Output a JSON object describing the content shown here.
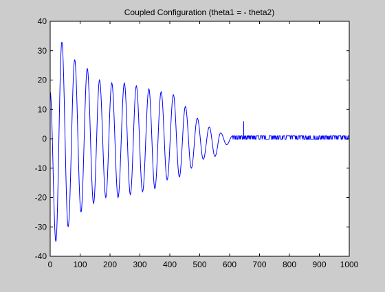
{
  "chart_data": {
    "type": "line",
    "title": "Coupled Configuration (theta1 = - theta2)",
    "xlabel": "",
    "ylabel": "",
    "xlim": [
      0,
      1000
    ],
    "ylim": [
      -40,
      40
    ],
    "x_ticks": [
      0,
      100,
      200,
      300,
      400,
      500,
      600,
      700,
      800,
      900,
      1000
    ],
    "y_ticks": [
      -40,
      -30,
      -20,
      -10,
      0,
      10,
      20,
      30,
      40
    ],
    "grid": false,
    "legend": "none",
    "colors": {
      "figure_bg": "#cccccc",
      "axes_bg": "#ffffff",
      "line": "#0000ff",
      "axis": "#000000"
    },
    "oscillation_extrema": [
      {
        "x": 0,
        "y": 16
      },
      {
        "x": 19,
        "y": -35
      },
      {
        "x": 39,
        "y": 33
      },
      {
        "x": 60,
        "y": -30
      },
      {
        "x": 82,
        "y": 27
      },
      {
        "x": 103,
        "y": -25
      },
      {
        "x": 124,
        "y": 24
      },
      {
        "x": 145,
        "y": -22
      },
      {
        "x": 165,
        "y": 20
      },
      {
        "x": 186,
        "y": -20
      },
      {
        "x": 206,
        "y": 19
      },
      {
        "x": 227,
        "y": -20
      },
      {
        "x": 248,
        "y": 19
      },
      {
        "x": 268,
        "y": -19
      },
      {
        "x": 288,
        "y": 18
      },
      {
        "x": 309,
        "y": -18
      },
      {
        "x": 330,
        "y": 17
      },
      {
        "x": 350,
        "y": -17
      },
      {
        "x": 371,
        "y": 16
      },
      {
        "x": 391,
        "y": -14
      },
      {
        "x": 412,
        "y": 15
      },
      {
        "x": 432,
        "y": -13
      },
      {
        "x": 452,
        "y": 11
      },
      {
        "x": 472,
        "y": -10
      },
      {
        "x": 492,
        "y": 7
      },
      {
        "x": 512,
        "y": -7
      },
      {
        "x": 532,
        "y": 4
      },
      {
        "x": 551,
        "y": -6
      },
      {
        "x": 570,
        "y": 2
      },
      {
        "x": 590,
        "y": -2
      },
      {
        "x": 610,
        "y": 1
      }
    ],
    "tail": {
      "x_start": 610,
      "x_end": 1000,
      "amplitude": 1,
      "mean": 0
    },
    "spike": {
      "x": 647,
      "y": 6
    }
  }
}
